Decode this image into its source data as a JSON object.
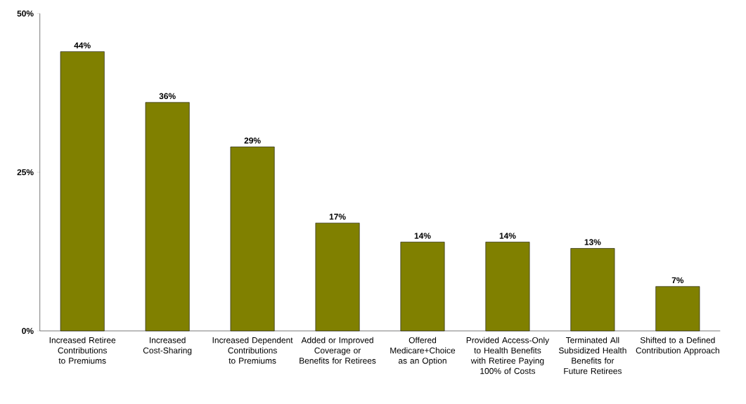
{
  "chart_data": {
    "type": "bar",
    "categories": [
      "Increased Retiree Contributions to Premiums",
      "Increased Cost-Sharing",
      "Increased Dependent Contributions to Premiums",
      "Added or Improved Coverage or Benefits for Retirees",
      "Offered Medicare+Choice as an Option",
      "Provided Access-Only to Health Benefits with Retiree Paying 100% of Costs",
      "Terminated All Subsidized Health Benefits for Future Retirees",
      "Shifted to a Defined Contribution Approach"
    ],
    "values": [
      44,
      36,
      29,
      17,
      14,
      14,
      13,
      7
    ],
    "value_labels": [
      "44%",
      "36%",
      "29%",
      "17%",
      "14%",
      "14%",
      "13%",
      "7%"
    ],
    "color": "#808000",
    "ylim": [
      0,
      50
    ],
    "yticks": [
      {
        "value": 0,
        "label": "0%"
      },
      {
        "value": 25,
        "label": "25%"
      },
      {
        "value": 50,
        "label": "50%"
      }
    ],
    "grid": false
  }
}
